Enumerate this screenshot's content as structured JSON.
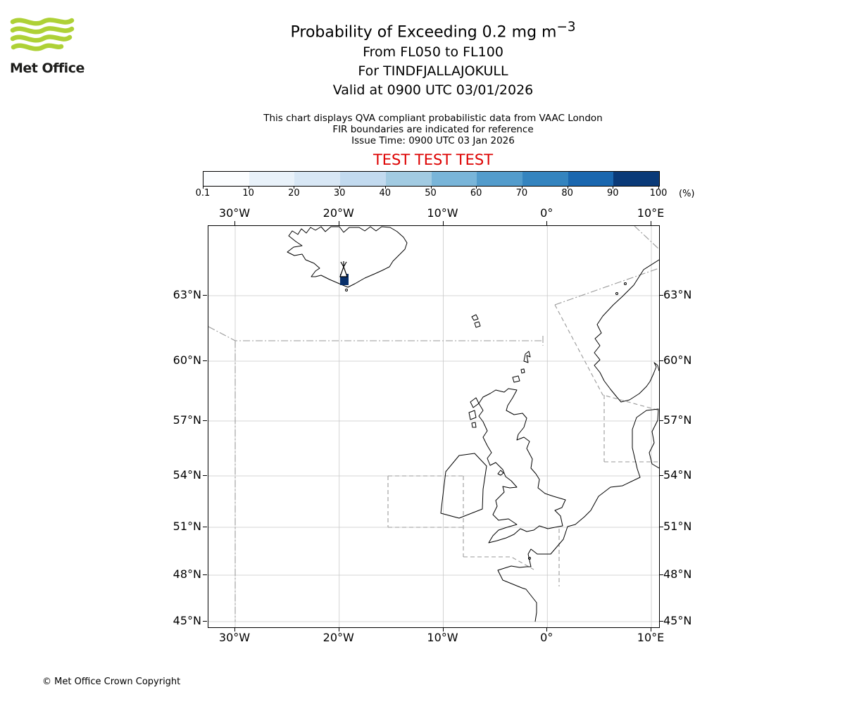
{
  "logo": {
    "text": "Met Office",
    "wave_color": "#aed136"
  },
  "header": {
    "title_main": "Probability of Exceeding 0.2 mg m",
    "title_sup": "−3",
    "subtitle_levels": "From FL050 to FL100",
    "subtitle_volcano": "For TINDFJALLAJOKULL",
    "subtitle_valid": "Valid at 0900 UTC 03/01/2026",
    "note_line1": "This chart displays QVA compliant probabilistic data from VAAC London",
    "note_line2": "FIR boundaries are indicated for reference",
    "note_line3": "Issue Time: 0900 UTC 03 Jan 2026",
    "test_banner": "TEST TEST TEST",
    "test_color": "#dd0000"
  },
  "colorbar": {
    "tick_labels": [
      "0.1",
      "10",
      "20",
      "30",
      "40",
      "50",
      "60",
      "70",
      "80",
      "90",
      "100"
    ],
    "unit": "(%)",
    "colors": [
      "#fbfdff",
      "#e9f2fa",
      "#d8e7f5",
      "#c2daef",
      "#a2cbe2",
      "#79b5d9",
      "#539ccc",
      "#3484bf",
      "#1a67af",
      "#0a3a78"
    ]
  },
  "map": {
    "lon_labels": [
      "30°W",
      "20°W",
      "10°W",
      "0°",
      "10°E"
    ],
    "lat_labels": [
      "63°N",
      "60°N",
      "57°N",
      "54°N",
      "51°N",
      "48°N",
      "45°N"
    ],
    "colors": {
      "coastline": "#000000",
      "fir_boundary": "#9a9a9a",
      "grid": "#c8c8c8",
      "high_prob_cell": "#08306b"
    }
  },
  "footer": {
    "copyright": "© Met Office Crown Copyright"
  },
  "chart_data": {
    "type": "heatmap",
    "title": "Probability of Exceeding 0.2 mg m⁻³",
    "flight_levels": "FL050 to FL100",
    "volcano": "TINDFJALLAJOKULL",
    "valid_time": "0900 UTC 03/01/2026",
    "issue_time": "0900 UTC 03 Jan 2026",
    "source": "VAAC London",
    "unit": "%",
    "colorbar_ticks": [
      0.1,
      10,
      20,
      30,
      40,
      50,
      60,
      70,
      80,
      90,
      100
    ],
    "x_axis_ticks": [
      "30°W",
      "20°W",
      "10°W",
      "0°",
      "10°E"
    ],
    "y_axis_ticks": [
      "63°N",
      "60°N",
      "57°N",
      "54°N",
      "51°N",
      "48°N",
      "45°N"
    ],
    "legend_position": "top, horizontal colorbar",
    "grid": true,
    "observed_signal": "single high-probability cell (darkest colorbar class) at the volcano source on the south coast of Iceland, approx 19.6°W 63.6°N, marked with an eruption symbol"
  }
}
